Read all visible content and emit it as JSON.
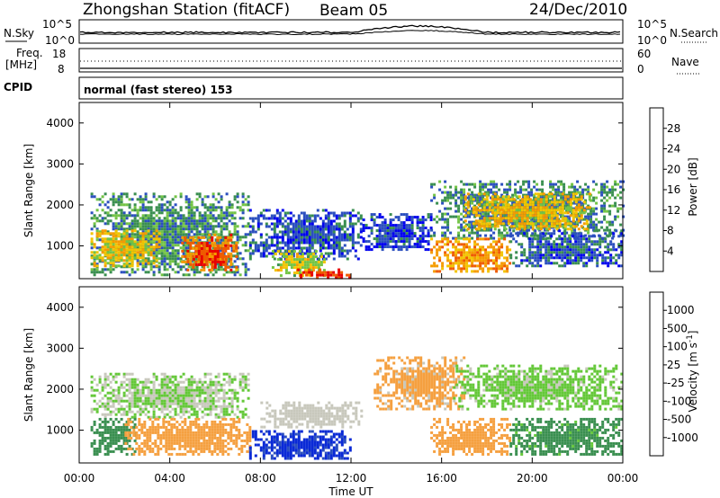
{
  "header": {
    "station": "Zhongshan Station (fitACF)",
    "beam": "Beam 05",
    "date": "24/Dec/2010"
  },
  "sky_panel": {
    "left_label": "N.Sky",
    "right_label": "N.Search",
    "ticks_left": [
      "10^5",
      "10^0"
    ],
    "ticks_right": [
      "10^5",
      "10^0"
    ]
  },
  "freq_panel": {
    "left_label_line1": "Freq.",
    "left_label_line2": "[MHz]",
    "right_label": "Nave",
    "ticks_left": [
      "18",
      "8"
    ],
    "ticks_right": [
      "60",
      "0"
    ]
  },
  "cpid_panel": {
    "label": "CPID",
    "mode_text": "normal (fast stereo) 153"
  },
  "colors": {
    "power": [
      "#0000ee",
      "#2b4fbf",
      "#3a8f50",
      "#73c445",
      "#f2c400",
      "#f59b00",
      "#ef5a00",
      "#e80000"
    ],
    "velocity": [
      "#e80000",
      "#ef5a00",
      "#f5a040",
      "#c8c8bc",
      "#c8c8bc",
      "#64c838",
      "#3a8f50",
      "#2b4fbf",
      "#0a2ad6"
    ]
  },
  "chart_data": [
    {
      "type": "heatmap",
      "name": "power",
      "ylabel": "Slant Range [km]",
      "yticks": [
        "1000",
        "2000",
        "3000",
        "4000"
      ],
      "ylim": [
        200,
        4500
      ],
      "xlim_hours": [
        0,
        24
      ],
      "colorbar_label": "Power [dB]",
      "colorbar_ticks": [
        "4",
        "8",
        "12",
        "16",
        "20",
        "24",
        "28"
      ],
      "colorbar_range": [
        0,
        32
      ],
      "regions": [
        {
          "x": [
            0.5,
            7.5
          ],
          "y": [
            300,
            2300
          ],
          "value": 10
        },
        {
          "x": [
            0.5,
            3.5
          ],
          "y": [
            500,
            1400
          ],
          "value": 18
        },
        {
          "x": [
            4.5,
            7.0
          ],
          "y": [
            400,
            1300
          ],
          "value": 24
        },
        {
          "x": [
            5.0,
            6.5
          ],
          "y": [
            500,
            1100
          ],
          "value": 28
        },
        {
          "x": [
            7.5,
            12.5
          ],
          "y": [
            700,
            1900
          ],
          "value": 6
        },
        {
          "x": [
            8.5,
            11.0
          ],
          "y": [
            300,
            900
          ],
          "value": 16
        },
        {
          "x": [
            9.5,
            12.0
          ],
          "y": [
            250,
            450
          ],
          "value": 27
        },
        {
          "x": [
            12.5,
            15.5
          ],
          "y": [
            900,
            1800
          ],
          "value": 5
        },
        {
          "x": [
            15.5,
            24.0
          ],
          "y": [
            1200,
            2600
          ],
          "value": 9
        },
        {
          "x": [
            17.0,
            22.5
          ],
          "y": [
            1400,
            2300
          ],
          "value": 19
        },
        {
          "x": [
            15.5,
            19.0
          ],
          "y": [
            400,
            1200
          ],
          "value": 22
        },
        {
          "x": [
            19.0,
            24.0
          ],
          "y": [
            500,
            1400
          ],
          "value": 7
        }
      ]
    },
    {
      "type": "heatmap",
      "name": "velocity",
      "ylabel": "Slant Range [km]",
      "yticks": [
        "1000",
        "2000",
        "3000",
        "4000"
      ],
      "ylim": [
        200,
        4500
      ],
      "xlim_hours": [
        0,
        24
      ],
      "xlabel": "Time UT",
      "xticks": [
        "00:00",
        "04:00",
        "08:00",
        "12:00",
        "16:00",
        "20:00",
        "00:00"
      ],
      "colorbar_label": "Velocity [m s^-1]",
      "colorbar_ticks": [
        "-1000",
        "-500",
        "-100",
        "-25",
        "25",
        "100",
        "500",
        "1000"
      ],
      "regions": [
        {
          "x": [
            0.5,
            7.5
          ],
          "y": [
            1300,
            2400
          ],
          "value": 0
        },
        {
          "x": [
            0.5,
            2.5
          ],
          "y": [
            400,
            1300
          ],
          "value": 60
        },
        {
          "x": [
            2.0,
            7.5
          ],
          "y": [
            400,
            1300
          ],
          "value": -250
        },
        {
          "x": [
            7.5,
            12.0
          ],
          "y": [
            300,
            1000
          ],
          "value": 600
        },
        {
          "x": [
            8.0,
            12.5
          ],
          "y": [
            1100,
            1700
          ],
          "value": -20
        },
        {
          "x": [
            13.0,
            17.0
          ],
          "y": [
            1500,
            2800
          ],
          "value": -150
        },
        {
          "x": [
            15.5,
            19.0
          ],
          "y": [
            400,
            1300
          ],
          "value": -250
        },
        {
          "x": [
            16.5,
            24.0
          ],
          "y": [
            1500,
            2600
          ],
          "value": 10
        },
        {
          "x": [
            19.0,
            24.0
          ],
          "y": [
            400,
            1300
          ],
          "value": 40
        }
      ]
    }
  ]
}
